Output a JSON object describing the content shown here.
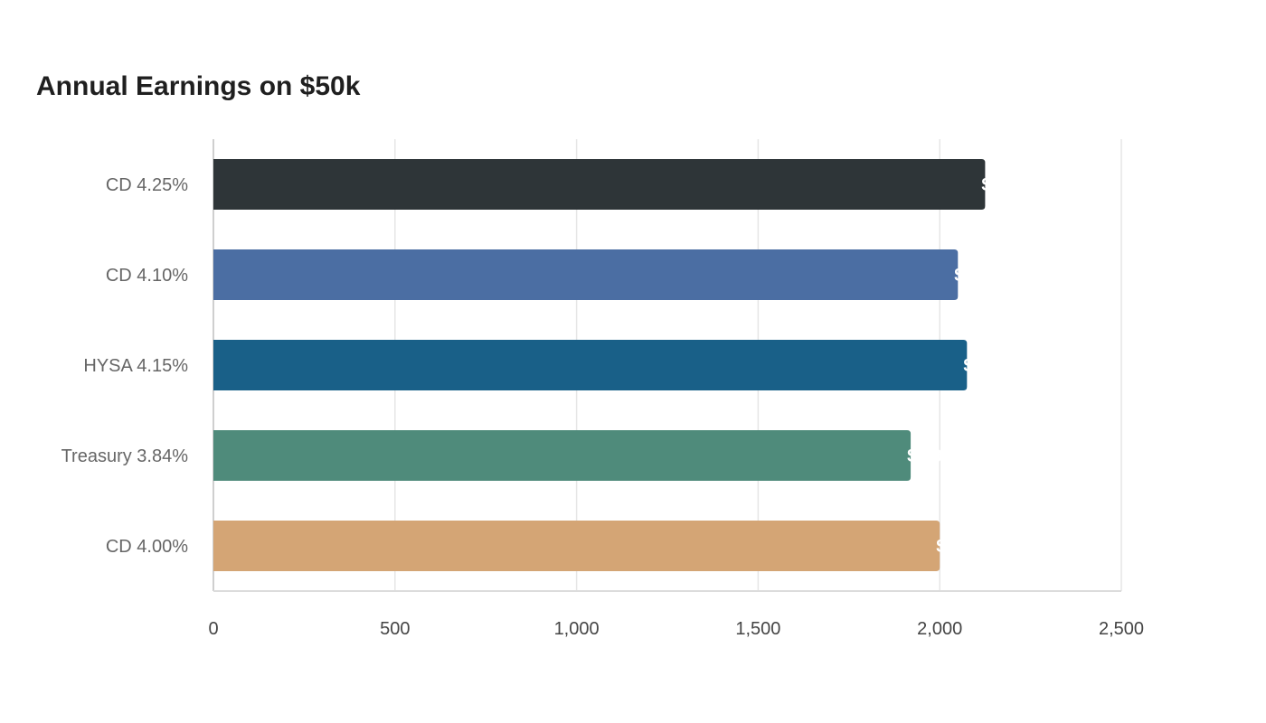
{
  "chart": {
    "title": "Annual Earnings on $50k"
  },
  "chart_data": {
    "type": "bar",
    "orientation": "horizontal",
    "title": "Annual Earnings on $50k",
    "xlabel": "",
    "ylabel": "",
    "categories": [
      "CD 4.25%",
      "CD 4.10%",
      "HYSA 4.15%",
      "Treasury 3.84%",
      "CD 4.00%"
    ],
    "values": [
      2125,
      2050,
      2075,
      1920,
      2000
    ],
    "value_labels": [
      "$2,125",
      "$2,050",
      "$2,075",
      "$1,920",
      "$2,000"
    ],
    "colors": [
      "#2e3538",
      "#4b6ea3",
      "#196088",
      "#4f8b7b",
      "#d4a575"
    ],
    "xlim": [
      0,
      2500
    ],
    "xticks": [
      0,
      500,
      1000,
      1500,
      2000,
      2500
    ],
    "xtick_labels": [
      "0",
      "500",
      "1,000",
      "1,500",
      "2,000",
      "2,500"
    ],
    "grid": true,
    "legend": "none"
  }
}
